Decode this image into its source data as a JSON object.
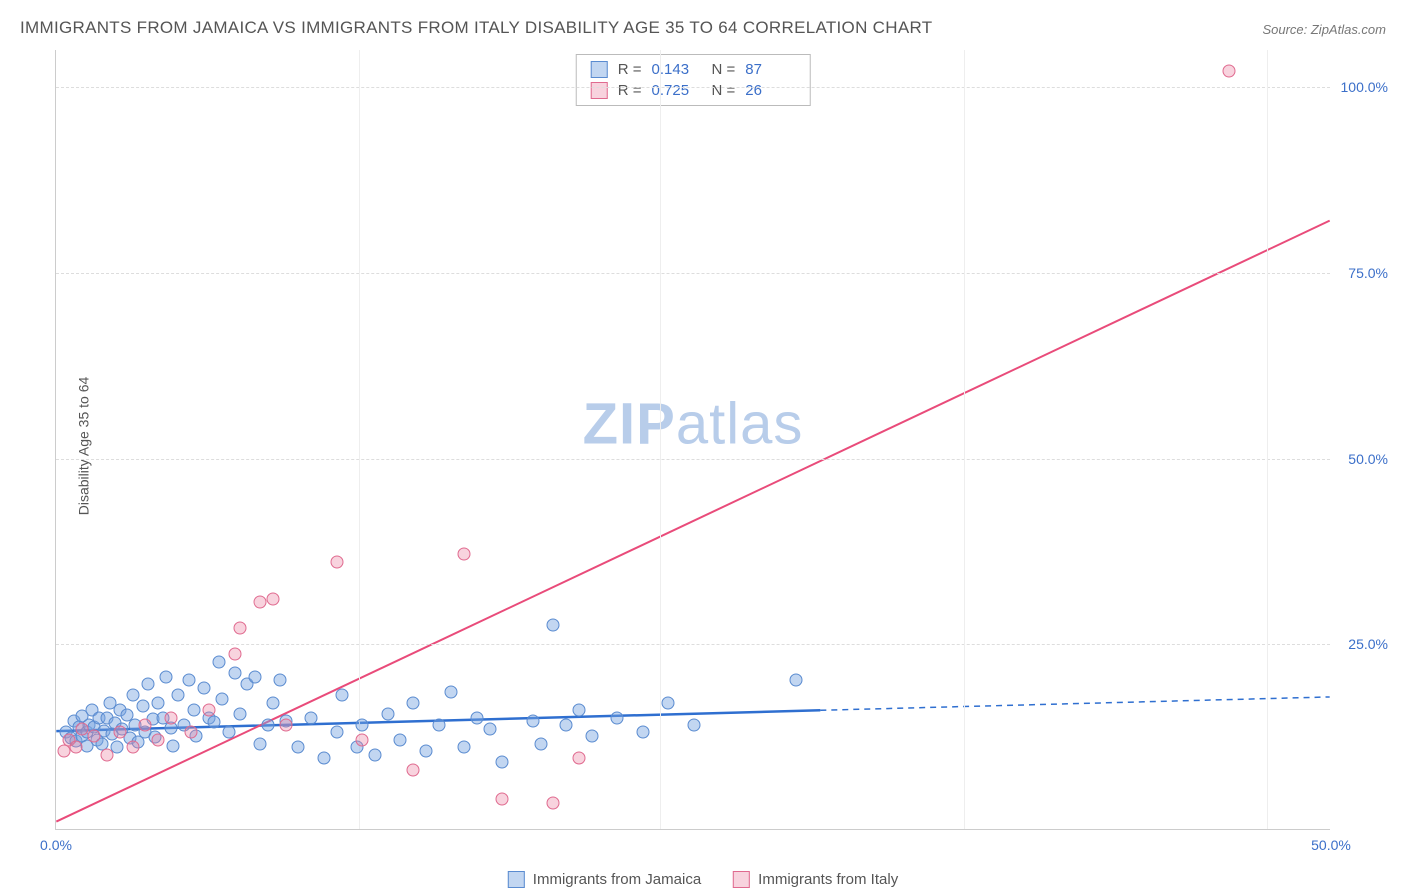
{
  "title": "IMMIGRANTS FROM JAMAICA VS IMMIGRANTS FROM ITALY DISABILITY AGE 35 TO 64 CORRELATION CHART",
  "source_label": "Source: ",
  "source_name": "ZipAtlas.com",
  "ylabel": "Disability Age 35 to 64",
  "watermark_a": "ZIP",
  "watermark_b": "atlas",
  "chart": {
    "type": "scatter",
    "xlim": [
      0,
      50
    ],
    "ylim": [
      0,
      105
    ],
    "xticks": [
      {
        "v": 0,
        "l": "0.0%"
      },
      {
        "v": 50,
        "l": "50.0%"
      }
    ],
    "yticks": [
      {
        "v": 25,
        "l": "25.0%"
      },
      {
        "v": 50,
        "l": "50.0%"
      },
      {
        "v": 75,
        "l": "75.0%"
      },
      {
        "v": 100,
        "l": "100.0%"
      }
    ],
    "xgrid": [
      11.9,
      23.7,
      35.6,
      47.5
    ],
    "marker_size": 13,
    "background_color": "#ffffff",
    "grid_color": "#dddddd"
  },
  "series": [
    {
      "name": "Immigrants from Jamaica",
      "fill": "rgba(120,165,225,0.45)",
      "stroke": "#5a8bd0",
      "line_color": "#2f6fd0",
      "R": "0.143",
      "N": "87",
      "reg": {
        "x1": 0,
        "y1": 13.2,
        "x2": 30,
        "y2": 16.0,
        "x_solid_end": 30,
        "x_dash_end": 50,
        "y_dash_end": 17.8
      },
      "points": [
        [
          0.4,
          13.0
        ],
        [
          0.6,
          12.2
        ],
        [
          0.7,
          14.6
        ],
        [
          0.8,
          11.9
        ],
        [
          0.9,
          13.8
        ],
        [
          1.0,
          15.2
        ],
        [
          1.0,
          12.5
        ],
        [
          1.2,
          13.0
        ],
        [
          1.2,
          11.2
        ],
        [
          1.3,
          14.0
        ],
        [
          1.4,
          16.0
        ],
        [
          1.5,
          13.7
        ],
        [
          1.6,
          12.0
        ],
        [
          1.7,
          14.9
        ],
        [
          1.8,
          11.4
        ],
        [
          1.9,
          13.2
        ],
        [
          2.0,
          15.0
        ],
        [
          2.1,
          17.0
        ],
        [
          2.2,
          12.8
        ],
        [
          2.3,
          14.3
        ],
        [
          2.4,
          11.0
        ],
        [
          2.5,
          16.0
        ],
        [
          2.6,
          13.5
        ],
        [
          2.8,
          15.4
        ],
        [
          2.9,
          12.2
        ],
        [
          3.0,
          18.0
        ],
        [
          3.1,
          14.0
        ],
        [
          3.2,
          11.7
        ],
        [
          3.4,
          16.5
        ],
        [
          3.5,
          13.0
        ],
        [
          3.6,
          19.5
        ],
        [
          3.8,
          14.8
        ],
        [
          3.9,
          12.4
        ],
        [
          4.0,
          17.0
        ],
        [
          4.2,
          15.0
        ],
        [
          4.3,
          20.5
        ],
        [
          4.5,
          13.6
        ],
        [
          4.6,
          11.2
        ],
        [
          4.8,
          18.0
        ],
        [
          5.0,
          14.0
        ],
        [
          5.2,
          20.0
        ],
        [
          5.4,
          16.0
        ],
        [
          5.5,
          12.5
        ],
        [
          5.8,
          19.0
        ],
        [
          6.0,
          15.0
        ],
        [
          6.2,
          14.4
        ],
        [
          6.4,
          22.5
        ],
        [
          6.5,
          17.5
        ],
        [
          6.8,
          13.0
        ],
        [
          7.0,
          21.0
        ],
        [
          7.2,
          15.5
        ],
        [
          7.5,
          19.5
        ],
        [
          7.8,
          20.5
        ],
        [
          8.0,
          11.5
        ],
        [
          8.3,
          14.0
        ],
        [
          8.5,
          17.0
        ],
        [
          8.8,
          20.0
        ],
        [
          9.0,
          14.5
        ],
        [
          9.5,
          11.0
        ],
        [
          10.0,
          15.0
        ],
        [
          10.5,
          9.5
        ],
        [
          11.0,
          13.0
        ],
        [
          11.2,
          18.0
        ],
        [
          11.8,
          11.0
        ],
        [
          12.0,
          14.0
        ],
        [
          12.5,
          10.0
        ],
        [
          13.0,
          15.5
        ],
        [
          13.5,
          12.0
        ],
        [
          14.0,
          17.0
        ],
        [
          14.5,
          10.5
        ],
        [
          15.0,
          14.0
        ],
        [
          15.5,
          18.5
        ],
        [
          16.0,
          11.0
        ],
        [
          16.5,
          15.0
        ],
        [
          17.0,
          13.5
        ],
        [
          17.5,
          9.0
        ],
        [
          18.7,
          14.5
        ],
        [
          19.0,
          11.5
        ],
        [
          19.5,
          27.5
        ],
        [
          20.0,
          14.0
        ],
        [
          20.5,
          16.0
        ],
        [
          21.0,
          12.5
        ],
        [
          22.0,
          15.0
        ],
        [
          23.0,
          13.0
        ],
        [
          24.0,
          17.0
        ],
        [
          25.0,
          14.0
        ],
        [
          29.0,
          20.0
        ]
      ]
    },
    {
      "name": "Immigrants from Italy",
      "fill": "rgba(235,130,160,0.35)",
      "stroke": "#e06a8f",
      "line_color": "#e94b7a",
      "R": "0.725",
      "N": "26",
      "reg": {
        "x1": 0,
        "y1": 1.0,
        "x2": 50,
        "y2": 82.0
      },
      "points": [
        [
          0.3,
          10.5
        ],
        [
          0.5,
          12.0
        ],
        [
          0.8,
          11.0
        ],
        [
          1.0,
          13.5
        ],
        [
          1.5,
          12.5
        ],
        [
          2.0,
          10.0
        ],
        [
          2.5,
          13.0
        ],
        [
          3.0,
          11.0
        ],
        [
          3.5,
          14.0
        ],
        [
          4.0,
          12.0
        ],
        [
          4.5,
          15.0
        ],
        [
          5.3,
          13.0
        ],
        [
          6.0,
          16.0
        ],
        [
          7.0,
          23.5
        ],
        [
          7.2,
          27.0
        ],
        [
          8.0,
          30.5
        ],
        [
          8.5,
          31.0
        ],
        [
          9.0,
          14.0
        ],
        [
          11.0,
          36.0
        ],
        [
          12.0,
          12.0
        ],
        [
          14.0,
          8.0
        ],
        [
          16.0,
          37.0
        ],
        [
          17.5,
          4.0
        ],
        [
          19.5,
          3.5
        ],
        [
          20.5,
          9.5
        ],
        [
          46.0,
          102.0
        ]
      ]
    }
  ],
  "stat_labels": {
    "R": "R  =",
    "N": "N  ="
  },
  "legend_swatch_border": {
    "a": "#5a8bd0",
    "b": "#e06a8f"
  },
  "legend_swatch_fill": {
    "a": "rgba(120,165,225,0.5)",
    "b": "rgba(235,130,160,0.45)"
  }
}
